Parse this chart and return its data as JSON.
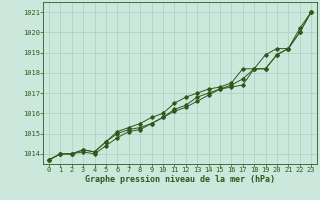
{
  "x": [
    0,
    1,
    2,
    3,
    4,
    5,
    6,
    7,
    8,
    9,
    10,
    11,
    12,
    13,
    14,
    15,
    16,
    17,
    18,
    19,
    20,
    21,
    22,
    23
  ],
  "line1": [
    1013.7,
    1014.0,
    1014.0,
    1014.1,
    1014.0,
    1014.4,
    1014.8,
    1015.1,
    1015.2,
    1015.5,
    1015.8,
    1016.1,
    1016.3,
    1016.6,
    1016.9,
    1017.2,
    1017.3,
    1017.4,
    1018.2,
    1018.2,
    1018.9,
    1019.2,
    1020.2,
    1021.0
  ],
  "line2": [
    1013.7,
    1014.0,
    1014.0,
    1014.2,
    1014.1,
    1014.6,
    1015.0,
    1015.2,
    1015.3,
    1015.5,
    1015.8,
    1016.2,
    1016.4,
    1016.8,
    1017.0,
    1017.2,
    1017.4,
    1017.7,
    1018.2,
    1018.2,
    1018.9,
    1019.2,
    1020.0,
    1021.0
  ],
  "line3": [
    1013.7,
    1014.0,
    1014.0,
    1014.2,
    1014.1,
    1014.6,
    1015.1,
    1015.3,
    1015.5,
    1015.8,
    1016.0,
    1016.5,
    1016.8,
    1017.0,
    1017.2,
    1017.3,
    1017.5,
    1018.2,
    1018.2,
    1018.9,
    1019.2,
    1019.2,
    1020.0,
    1021.0
  ],
  "line_color": "#2d5a1b",
  "bg_color": "#cce8dc",
  "grid_color": "#aacfbe",
  "xlabel": "Graphe pression niveau de la mer (hPa)",
  "ylim": [
    1013.5,
    1021.5
  ],
  "xlim": [
    -0.5,
    23.5
  ],
  "yticks": [
    1014,
    1015,
    1016,
    1017,
    1018,
    1019,
    1020,
    1021
  ],
  "xticks": [
    0,
    1,
    2,
    3,
    4,
    5,
    6,
    7,
    8,
    9,
    10,
    11,
    12,
    13,
    14,
    15,
    16,
    17,
    18,
    19,
    20,
    21,
    22,
    23
  ],
  "tick_fontsize": 5.0,
  "xlabel_fontsize": 6.0
}
